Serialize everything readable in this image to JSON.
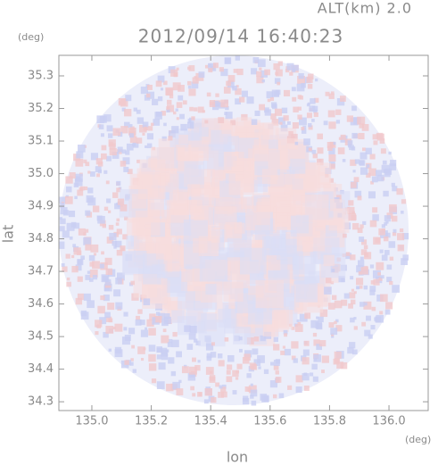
{
  "chart_data": {
    "type": "radar-field",
    "title": "2012/09/14 16:40:23",
    "altitude_label": "ALT(km) 2.0",
    "y_unit": "(deg)",
    "x_unit": "(deg)",
    "x_label": "lon",
    "y_label": "lat",
    "xlim": [
      134.889,
      136.132
    ],
    "ylim": [
      34.273,
      35.363
    ],
    "xticks": [
      {
        "value": 135.0,
        "label": "135.0"
      },
      135.2,
      135.4,
      135.6,
      135.8,
      {
        "value": 136.0,
        "label": "136.0"
      }
    ],
    "yticks": [
      34.3,
      34.4,
      34.5,
      34.6,
      34.7,
      34.8,
      34.9,
      {
        "value": 35.0,
        "label": "35.0"
      },
      35.1,
      35.2,
      35.3
    ]
  }
}
